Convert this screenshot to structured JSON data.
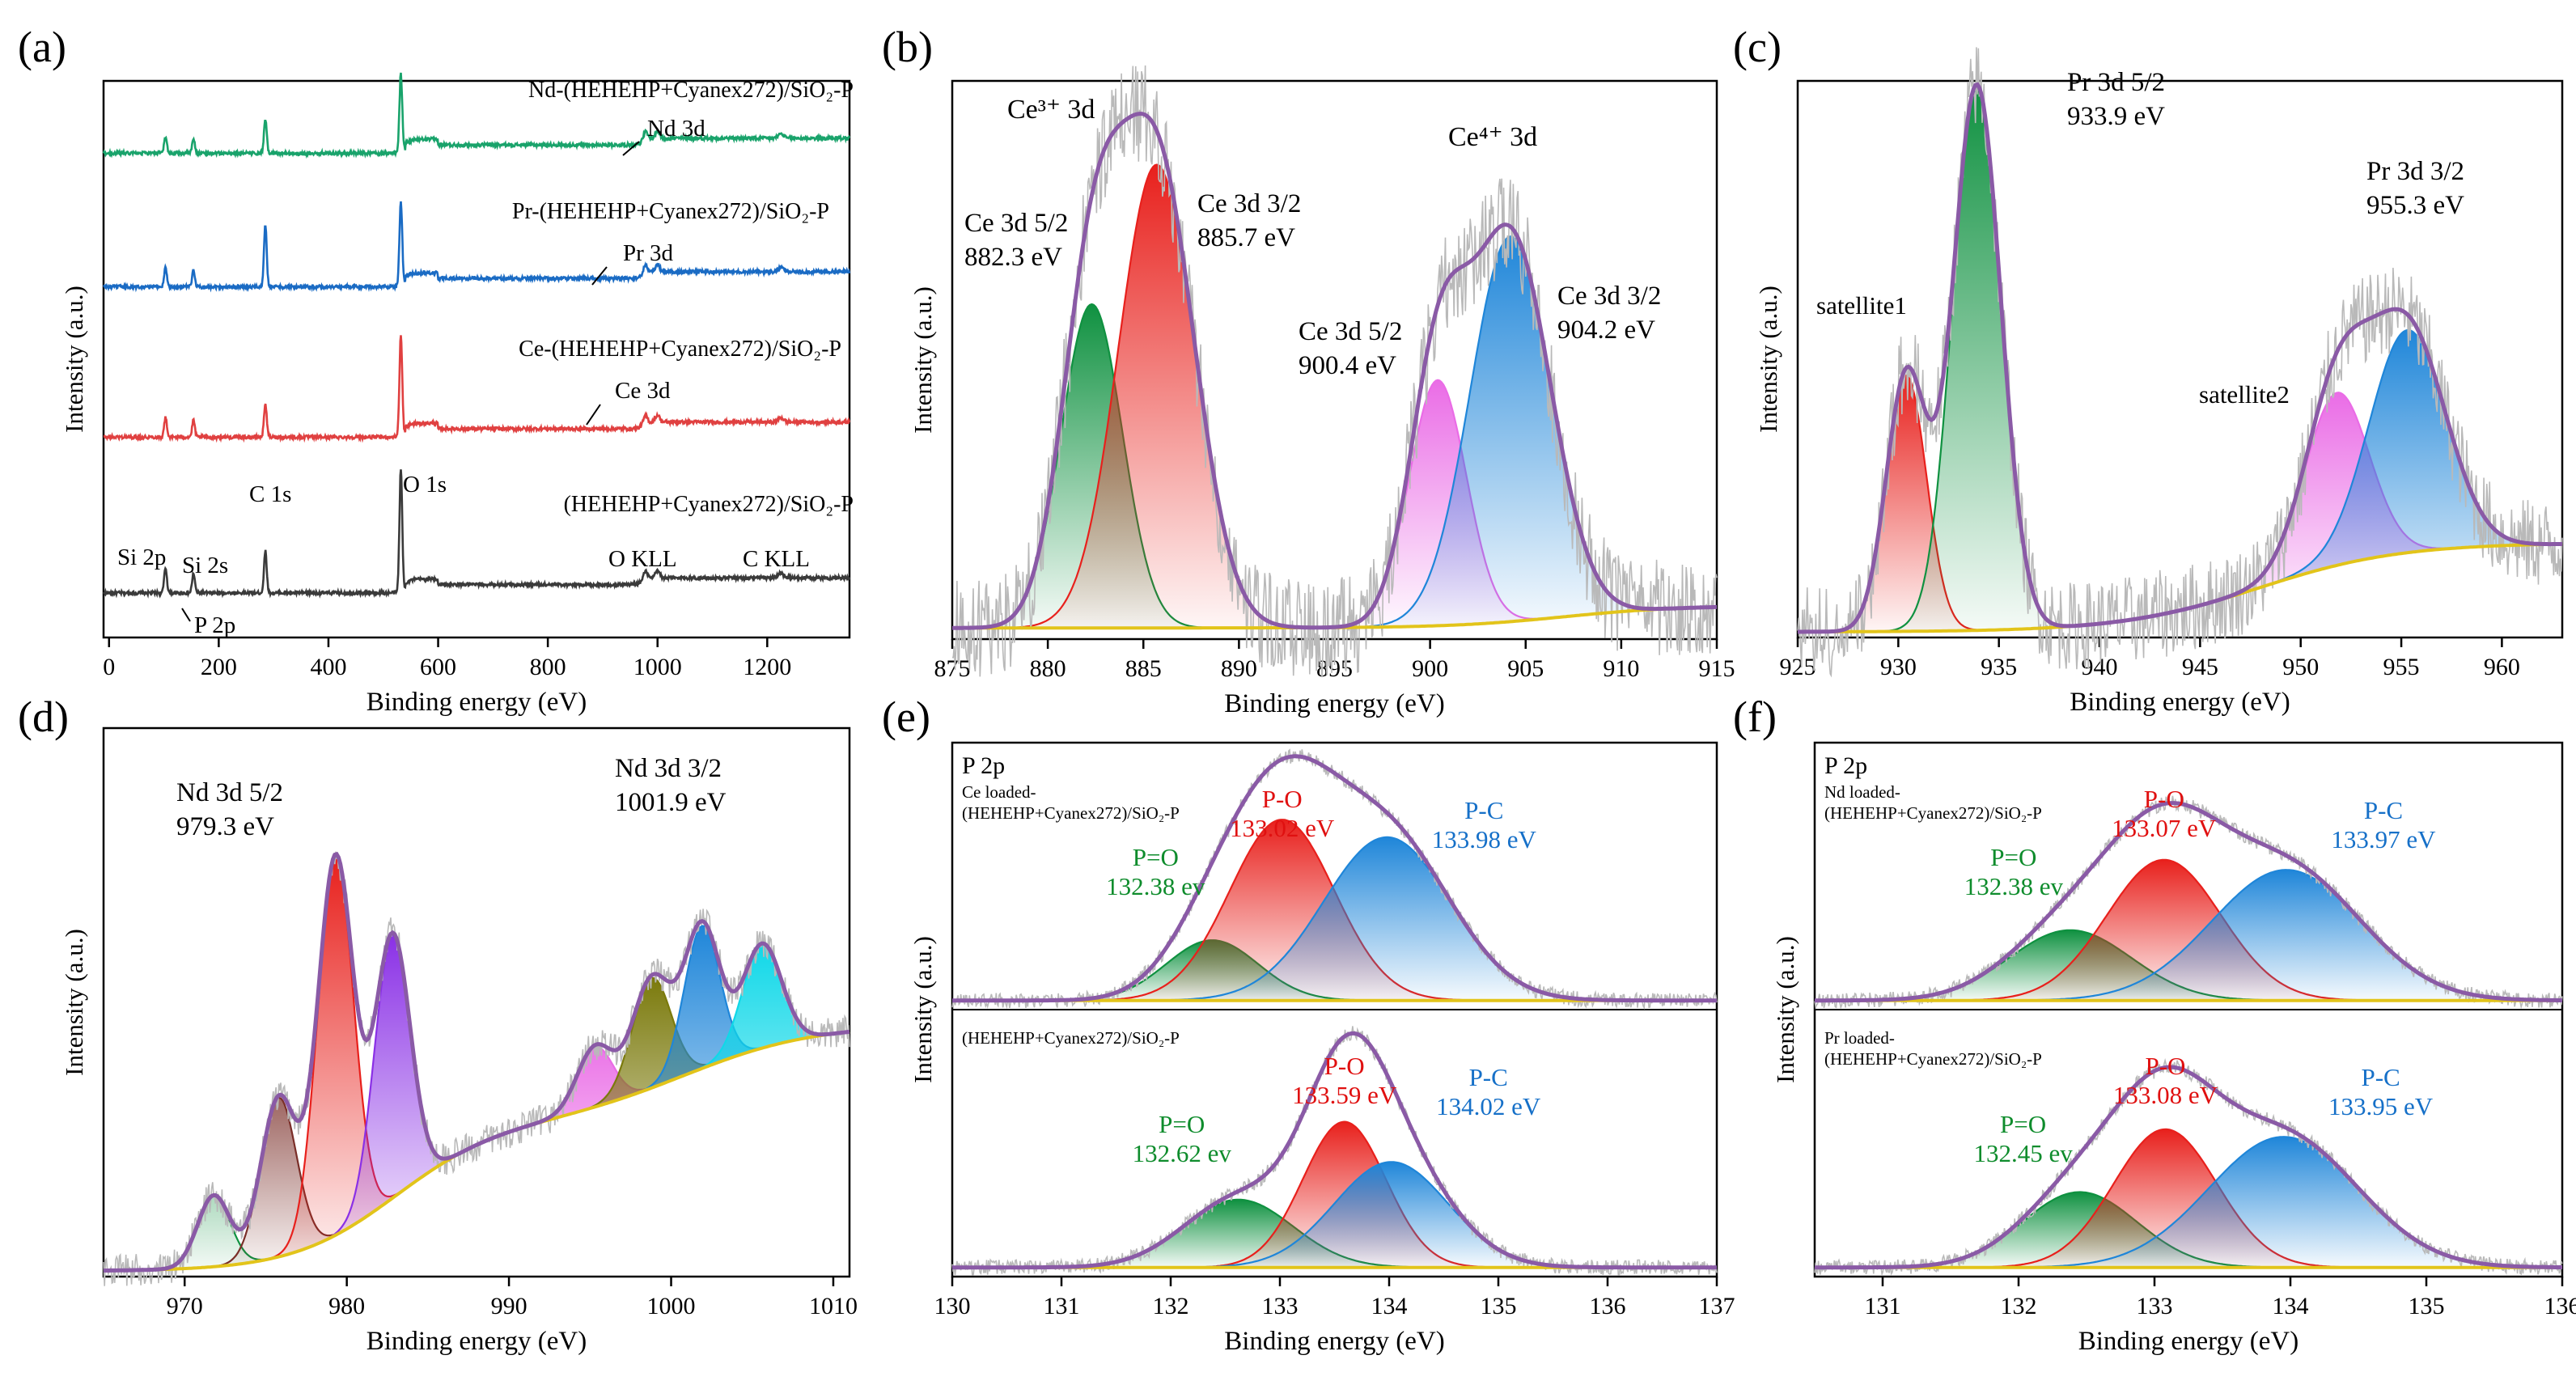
{
  "figure": {
    "colors": {
      "envelope": "#8a5aa6",
      "baseline": "#e2c41a",
      "raw": "#b9b9b9",
      "green": "#0f9140",
      "red": "#e8201c",
      "blue": "#1f86d9",
      "magenta": "#ea6ce6",
      "brown": "#7a2e28",
      "purple": "#8a30e6",
      "olive": "#7b7a0c",
      "cyan": "#10d8e8",
      "axis": "#000000",
      "textGreen": "#0e8c2c",
      "textRed": "#e01010",
      "textBlue": "#1670c8"
    }
  },
  "chart_data": [
    {
      "id": "a",
      "panel_label": "(a)",
      "type": "line",
      "xlabel": "Binding energy (eV)",
      "ylabel": "Intensity (a.u.)",
      "xlim": [
        -10,
        1350
      ],
      "ylim": [
        0,
        100
      ],
      "xticks": [
        0,
        200,
        400,
        600,
        800,
        1000,
        1200
      ],
      "series": [
        {
          "name": "(HEHEHP+Cyanex272)/SiO2-P",
          "label": "(HEHEHP+Cyanex272)/SiO₂-P",
          "color": "#3a3a3a",
          "offset": 8,
          "peaks": [
            [
              103,
              4.5,
              2.5
            ],
            [
              154,
              3.5,
              2.5
            ],
            [
              285,
              7.5,
              2.5
            ],
            [
              532,
              22,
              2.5
            ]
          ]
        },
        {
          "name": "Ce-(HEHEHP+Cyanex272)/SiO2-P",
          "label": "Ce-(HEHEHP+Cyanex272)/SiO₂-P",
          "color": "#e04040",
          "offset": 36,
          "peaks": [
            [
              103,
              3.5,
              2.5
            ],
            [
              154,
              3.0,
              2.5
            ],
            [
              285,
              6.0,
              2.5
            ],
            [
              532,
              18,
              2.5
            ]
          ]
        },
        {
          "name": "Pr-(HEHEHP+Cyanex272)/SiO2-P",
          "label": "Pr-(HEHEHP+Cyanex272)/SiO₂-P",
          "color": "#1a6bc4",
          "offset": 63,
          "peaks": [
            [
              103,
              3.5,
              2.5
            ],
            [
              154,
              3.0,
              2.5
            ],
            [
              285,
              11,
              2.5
            ],
            [
              532,
              15,
              2.5
            ]
          ]
        },
        {
          "name": "Nd-(HEHEHP+Cyanex272)/SiO2-P",
          "label": "Nd-(HEHEHP+Cyanex272)/SiO₂-P",
          "color": "#19a36b",
          "offset": 87,
          "peaks": [
            [
              103,
              3.0,
              2.5
            ],
            [
              154,
              2.5,
              2.5
            ],
            [
              285,
              6.0,
              2.5
            ],
            [
              532,
              14,
              2.5
            ]
          ]
        }
      ],
      "annotations": [
        "Si 2p",
        "Si 2s",
        "P 2p",
        "C 1s",
        "O 1s",
        "O KLL",
        "C KLL",
        "Ce 3d",
        "Pr 3d",
        "Nd 3d"
      ]
    },
    {
      "id": "b",
      "panel_label": "(b)",
      "type": "area",
      "xlabel": "Binding energy (eV)",
      "ylabel": "Intensity (a.u.)",
      "xlim": [
        875,
        915
      ],
      "ylim": [
        0,
        100
      ],
      "xticks": [
        875,
        880,
        885,
        890,
        895,
        900,
        905,
        910,
        915
      ],
      "components": [
        {
          "name": "Ce 3d 5/2",
          "center": 882.3,
          "height": 58,
          "width": 1.6,
          "color": "#0f9140"
        },
        {
          "name": "Ce 3d 3/2",
          "center": 885.7,
          "height": 83,
          "width": 2.0,
          "color": "#e8201c"
        },
        {
          "name": "Ce 3d 5/2",
          "center": 900.4,
          "height": 44,
          "width": 1.5,
          "color": "#ea6ce6"
        },
        {
          "name": "Ce 3d 3/2",
          "center": 904.2,
          "height": 69,
          "width": 2.1,
          "color": "#1f86d9"
        }
      ],
      "labels": {
        "ce3": "Ce³⁺ 3d",
        "ce4": "Ce⁴⁺ 3d",
        "p1a": "Ce 3d 5/2",
        "p1b": "882.3 eV",
        "p2a": "Ce 3d 3/2",
        "p2b": "885.7 eV",
        "p3a": "Ce 3d 5/2",
        "p3b": "900.4 eV",
        "p4a": "Ce 3d 3/2",
        "p4b": "904.2 eV"
      }
    },
    {
      "id": "c",
      "panel_label": "(c)",
      "type": "area",
      "xlabel": "Binding energy (eV)",
      "ylabel": "Intensity (a.u.)",
      "xlim": [
        925,
        963
      ],
      "ylim": [
        0,
        100
      ],
      "xticks": [
        925,
        930,
        935,
        940,
        945,
        950,
        955,
        960
      ],
      "components": [
        {
          "name": "satellite1",
          "center": 930.4,
          "height": 46,
          "width": 1.0,
          "color": "#e8201c"
        },
        {
          "name": "Pr 3d 5/2",
          "center": 933.9,
          "height": 98,
          "width": 1.2,
          "color": "#0f9140"
        },
        {
          "name": "satellite2",
          "center": 951.8,
          "height": 31,
          "width": 1.6,
          "color": "#ea6ce6"
        },
        {
          "name": "Pr 3d 3/2",
          "center": 955.3,
          "height": 40,
          "width": 1.9,
          "color": "#1f86d9"
        }
      ],
      "labels": {
        "sat1": "satellite1",
        "sat2": "satellite2",
        "p1a": "Pr 3d 5/2",
        "p1b": "933.9 eV",
        "p2a": "Pr 3d 3/2",
        "p2b": "955.3 eV"
      }
    },
    {
      "id": "d",
      "panel_label": "(d)",
      "type": "area",
      "xlabel": "Binding energy (eV)",
      "ylabel": "Intensity (a.u.)",
      "xlim": [
        965,
        1011
      ],
      "ylim": [
        0,
        100
      ],
      "xticks": [
        970,
        980,
        990,
        1000,
        1010
      ],
      "components": [
        {
          "center": 971.8,
          "height": 13,
          "width": 1.0,
          "color": "#0f9140"
        },
        {
          "center": 975.8,
          "height": 29,
          "width": 1.1,
          "color": "#7a2e28"
        },
        {
          "name": "Nd 3d 5/2",
          "center": 979.3,
          "height": 69,
          "width": 1.1,
          "color": "#e8201c"
        },
        {
          "center": 982.8,
          "height": 48,
          "width": 1.1,
          "color": "#8a30e6"
        },
        {
          "center": 995.3,
          "height": 11,
          "width": 1.1,
          "color": "#ea6ce6"
        },
        {
          "center": 998.8,
          "height": 20,
          "width": 1.2,
          "color": "#7b7a0c"
        },
        {
          "name": "Nd 3d 3/2",
          "center": 1001.9,
          "height": 26,
          "width": 1.1,
          "color": "#1f86d9"
        },
        {
          "center": 1005.6,
          "height": 19,
          "width": 1.2,
          "color": "#10d8e8"
        }
      ],
      "labels": {
        "p1a": "Nd 3d 5/2",
        "p1b": "979.3 eV",
        "p2a": "Nd 3d 3/2",
        "p2b": "1001.9 eV"
      }
    },
    {
      "id": "e",
      "panel_label": "(e)",
      "type": "area",
      "xlabel": "Binding energy (eV)",
      "ylabel": "Intensity (a.u.)",
      "xlim": [
        130,
        137
      ],
      "xticks": [
        130,
        131,
        132,
        133,
        134,
        135,
        136,
        137
      ],
      "subplots": [
        {
          "title": "P 2p",
          "sample": [
            "Ce loaded-",
            "(HEHEHP+Cyanex272)/SiO₂-P"
          ],
          "components": [
            {
              "name": "P=O",
              "center": 132.38,
              "value": "132.38 ev",
              "height": 24,
              "width": 0.42,
              "color": "#0f9140"
            },
            {
              "name": "P-O",
              "center": 133.02,
              "value": "133.02 eV",
              "height": 72,
              "width": 0.48,
              "color": "#e8201c"
            },
            {
              "name": "P-C",
              "center": 133.98,
              "value": "133.98 eV",
              "height": 65,
              "width": 0.58,
              "color": "#1f86d9"
            }
          ]
        },
        {
          "title": "",
          "sample": [
            "(HEHEHP+Cyanex272)/SiO₂-P"
          ],
          "components": [
            {
              "name": "P=O",
              "center": 132.62,
              "value": "132.62 ev",
              "height": 27,
              "width": 0.5,
              "color": "#0f9140"
            },
            {
              "name": "P-O",
              "center": 133.59,
              "value": "133.59 eV",
              "height": 58,
              "width": 0.38,
              "color": "#e8201c"
            },
            {
              "name": "P-C",
              "center": 134.02,
              "value": "134.02 eV",
              "height": 42,
              "width": 0.52,
              "color": "#1f86d9"
            }
          ]
        }
      ]
    },
    {
      "id": "f",
      "panel_label": "(f)",
      "type": "area",
      "xlabel": "Binding energy (eV)",
      "ylabel": "Intensity (a.u.)",
      "xlim": [
        130.5,
        136
      ],
      "xticks": [
        131,
        132,
        133,
        134,
        135,
        136
      ],
      "subplots": [
        {
          "title": "P 2p",
          "sample": [
            "Nd loaded-",
            "(HEHEHP+Cyanex272)/SiO₂-P"
          ],
          "components": [
            {
              "name": "P=O",
              "center": 132.38,
              "value": "132.38 ev",
              "height": 28,
              "width": 0.45,
              "color": "#0f9140"
            },
            {
              "name": "P-O",
              "center": 133.07,
              "value": "133.07 eV",
              "height": 56,
              "width": 0.42,
              "color": "#e8201c"
            },
            {
              "name": "P-C",
              "center": 133.97,
              "value": "133.97 eV",
              "height": 52,
              "width": 0.55,
              "color": "#1f86d9"
            }
          ]
        },
        {
          "title": "",
          "sample": [
            "Pr loaded-",
            "(HEHEHP+Cyanex272)/SiO₂-P"
          ],
          "components": [
            {
              "name": "P=O",
              "center": 132.45,
              "value": "132.45 ev",
              "height": 30,
              "width": 0.42,
              "color": "#0f9140"
            },
            {
              "name": "P-O",
              "center": 133.08,
              "value": "133.08 eV",
              "height": 55,
              "width": 0.38,
              "color": "#e8201c"
            },
            {
              "name": "P-C",
              "center": 133.95,
              "value": "133.95 eV",
              "height": 52,
              "width": 0.55,
              "color": "#1f86d9"
            }
          ]
        }
      ]
    }
  ]
}
